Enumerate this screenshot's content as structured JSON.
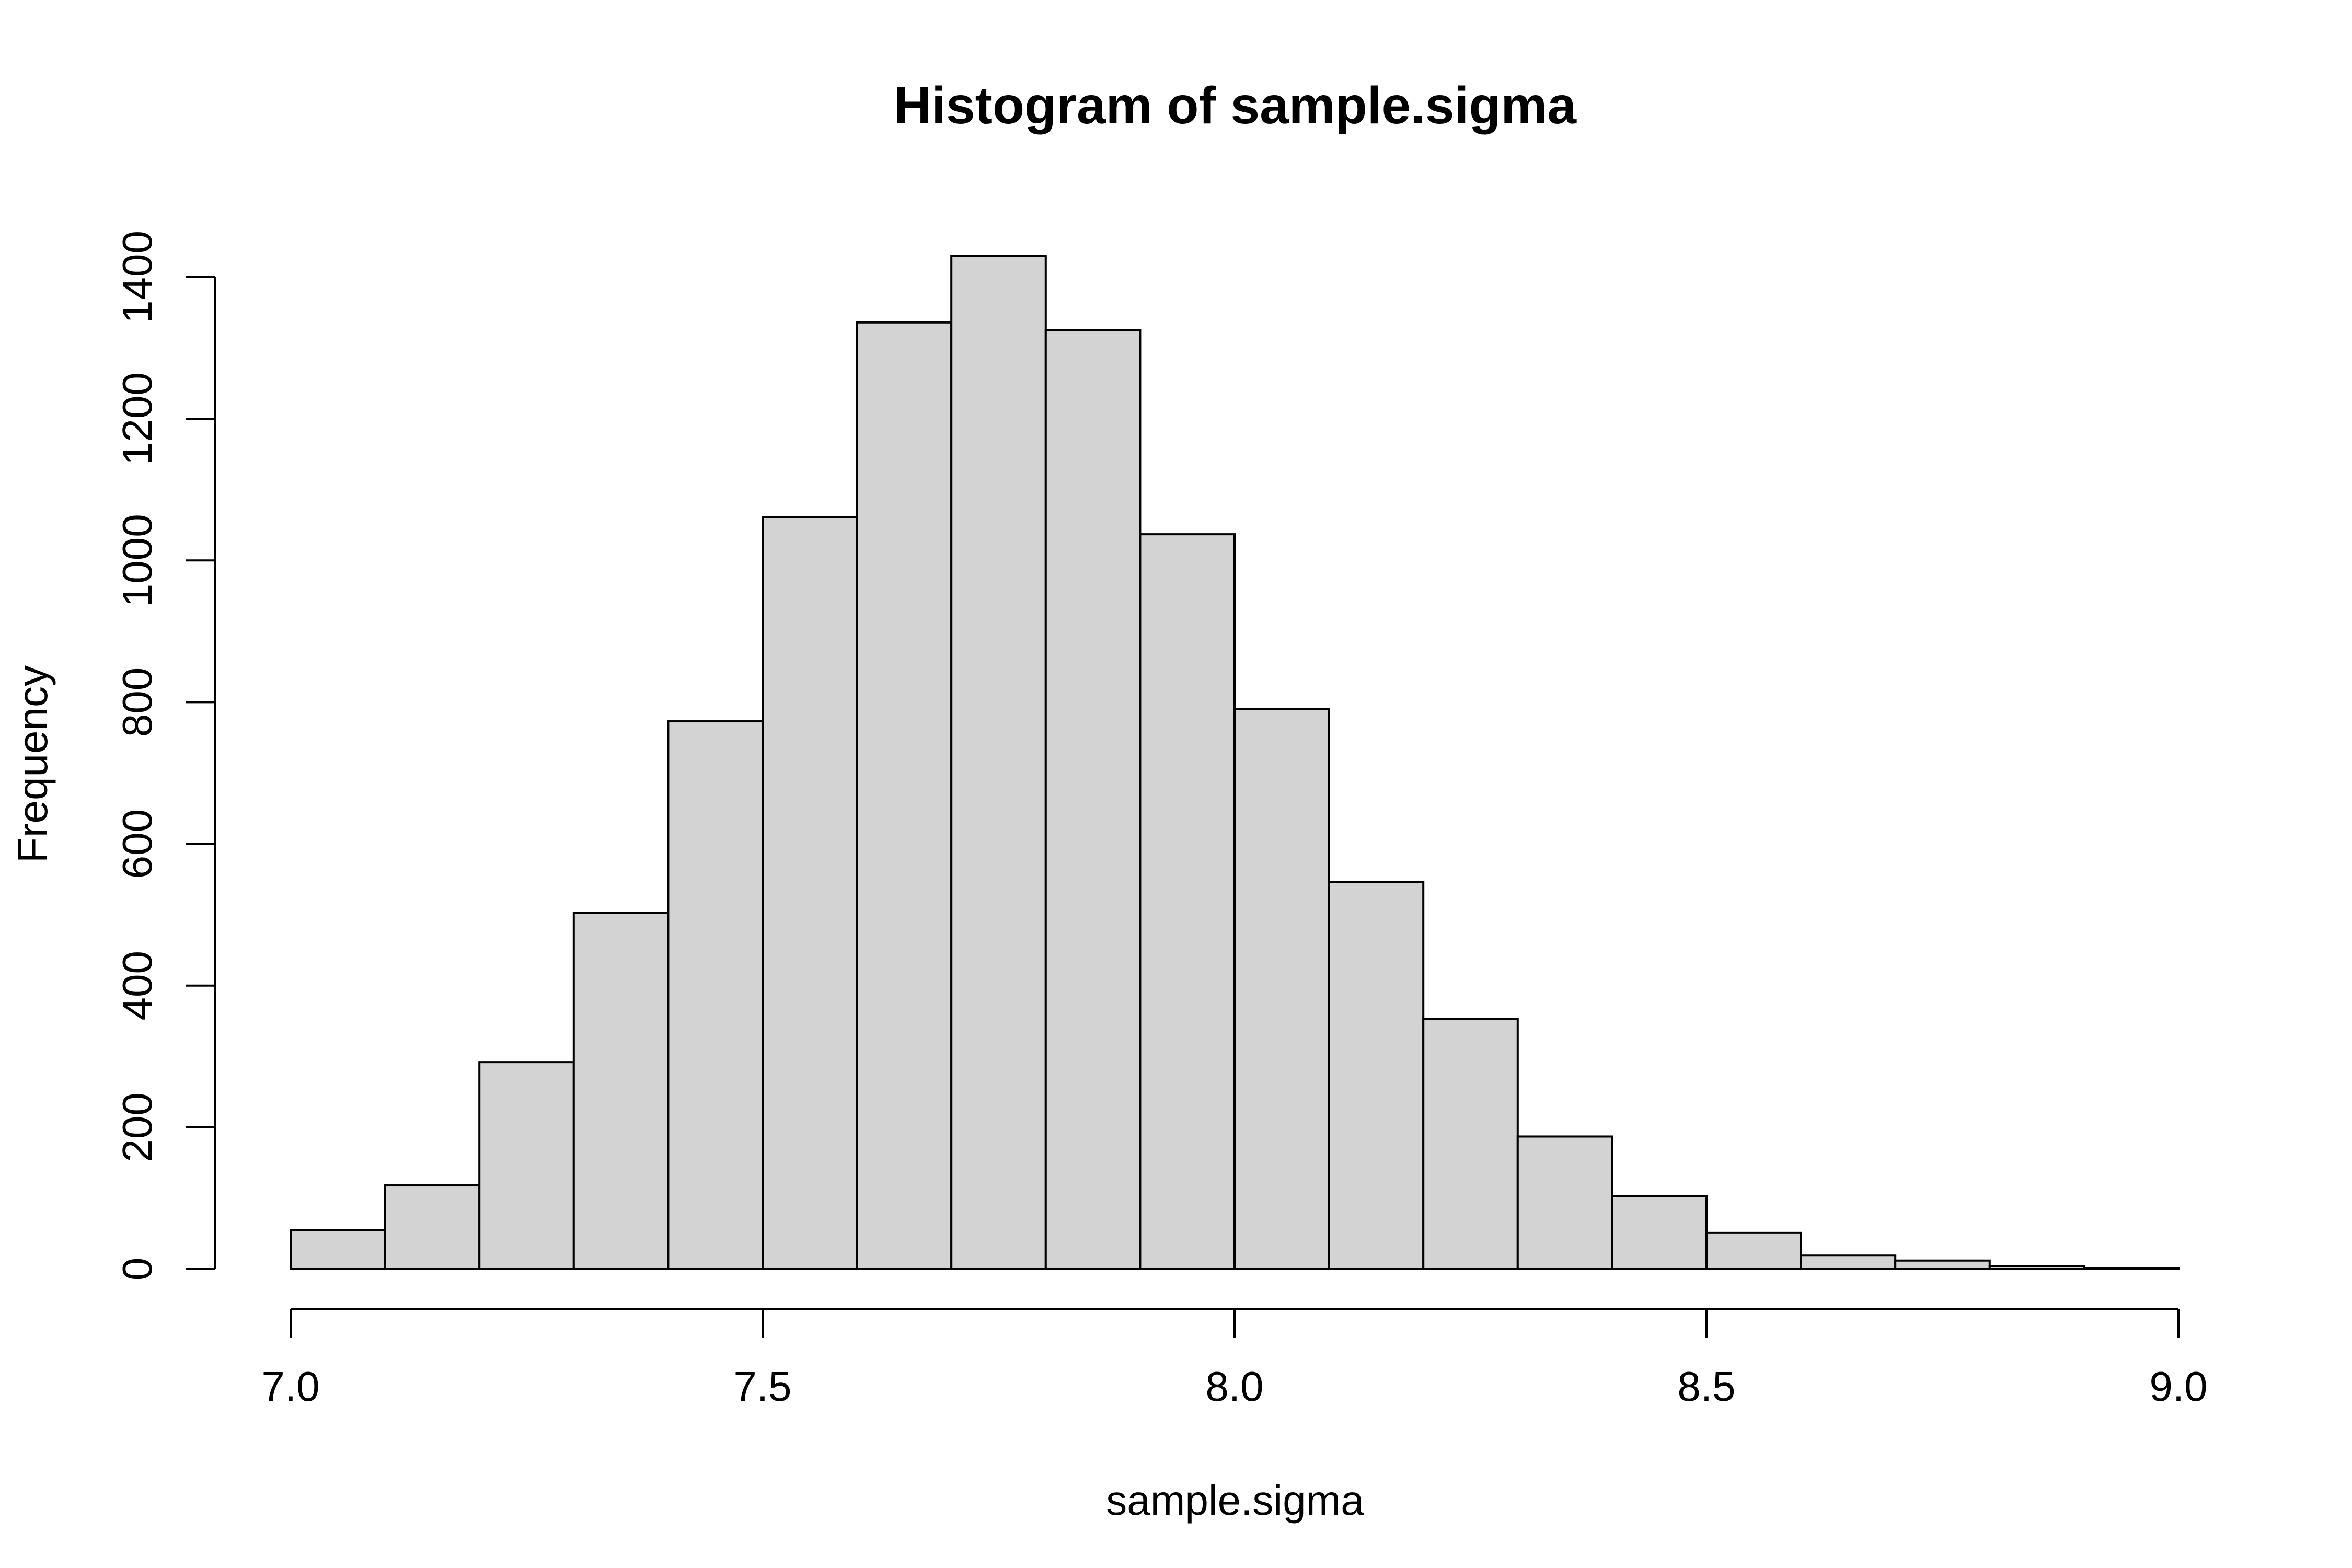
{
  "chart_data": {
    "type": "bar",
    "title": "Histogram of sample.sigma",
    "xlabel": "sample.sigma",
    "ylabel": "Frequency",
    "bin_edges": [
      7.0,
      7.1,
      7.2,
      7.3,
      7.4,
      7.5,
      7.6,
      7.7,
      7.8,
      7.9,
      8.0,
      8.1,
      8.2,
      8.3,
      8.4,
      8.5,
      8.6,
      8.7,
      8.8,
      8.9,
      9.0
    ],
    "values": [
      55,
      118,
      292,
      503,
      773,
      1061,
      1336,
      1430,
      1325,
      1037,
      790,
      546,
      353,
      187,
      103,
      51,
      19,
      12,
      4,
      1
    ],
    "xlim": [
      7.0,
      9.0
    ],
    "ylim": [
      0,
      1400
    ],
    "x_ticks": [
      7.0,
      7.5,
      8.0,
      8.5,
      9.0
    ],
    "x_tick_labels": [
      "7.0",
      "7.5",
      "8.0",
      "8.5",
      "9.0"
    ],
    "y_ticks": [
      0,
      200,
      400,
      600,
      800,
      1000,
      1200,
      1400
    ],
    "y_tick_labels": [
      "0",
      "200",
      "400",
      "600",
      "800",
      "1000",
      "1200",
      "1400"
    ],
    "bar_color": "#d3d3d3",
    "grid": false,
    "legend": "none"
  }
}
